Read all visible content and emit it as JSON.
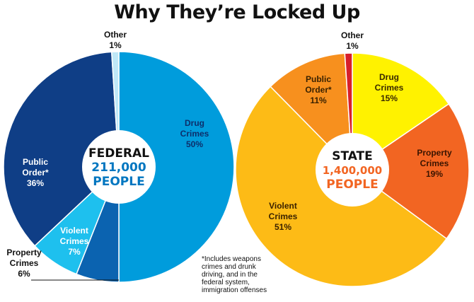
{
  "title": "Why They’re Locked Up",
  "colors": {
    "federal": {
      "drug": "#009cdc",
      "property": "#0b63b0",
      "violent": "#1ec0ee",
      "public_order": "#0f3e86",
      "other": "#bfe8f7"
    },
    "state": {
      "drug": "#fff200",
      "property": "#f26522",
      "violent": "#fdbb16",
      "public_order": "#f7901e",
      "other": "#d71f2b"
    },
    "federal_accent": "#0076c0",
    "state_accent": "#f26522"
  },
  "chart_data": [
    {
      "type": "pie",
      "center_label": {
        "name": "FEDERAL",
        "value": "211,000",
        "unit": "PEOPLE"
      },
      "slices": [
        {
          "key": "drug",
          "label": [
            "Drug",
            "Crimes"
          ],
          "pct_text": "50%",
          "value": 50
        },
        {
          "key": "property",
          "label": [
            "Property",
            "Crimes"
          ],
          "pct_text": "6%",
          "value": 6
        },
        {
          "key": "violent",
          "label": [
            "Violent",
            "Crimes"
          ],
          "pct_text": "7%",
          "value": 7
        },
        {
          "key": "public_order",
          "label": [
            "Public",
            "Order*"
          ],
          "pct_text": "36%",
          "value": 36
        },
        {
          "key": "other",
          "label": [
            "Other"
          ],
          "pct_text": "1%",
          "value": 1
        }
      ]
    },
    {
      "type": "pie",
      "center_label": {
        "name": "STATE",
        "value": "1,400,000",
        "unit": "PEOPLE"
      },
      "slices": [
        {
          "key": "drug",
          "label": [
            "Drug",
            "Crimes"
          ],
          "pct_text": "15%",
          "value": 15
        },
        {
          "key": "property",
          "label": [
            "Property",
            "Crimes"
          ],
          "pct_text": "19%",
          "value": 19
        },
        {
          "key": "violent",
          "label": [
            "Violent",
            "Crimes"
          ],
          "pct_text": "51%",
          "value": 51
        },
        {
          "key": "public_order",
          "label": [
            "Public",
            "Order*"
          ],
          "pct_text": "11%",
          "value": 11
        },
        {
          "key": "other",
          "label": [
            "Other"
          ],
          "pct_text": "1%",
          "value": 1
        }
      ]
    }
  ],
  "footnote": [
    "*Includes weapons",
    "crimes and drunk",
    "driving, and in the",
    "federal system,",
    "immigration offenses"
  ]
}
